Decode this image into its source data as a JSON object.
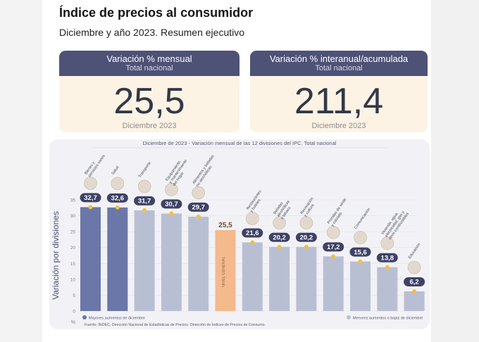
{
  "header": {
    "title": "Índice de precios al consumidor",
    "subtitle": "Diciembre y año 2023. Resumen ejecutivo"
  },
  "cards": [
    {
      "label": "Variación % mensual",
      "sublabel": "Total nacional",
      "value": "25,5",
      "date": "Diciembre 2023"
    },
    {
      "label": "Variación % interanual/acumulada",
      "sublabel": "Total nacional",
      "value": "211,4",
      "date": "Diciembre 2023"
    }
  ],
  "colors": {
    "header_bg": "#4e5276",
    "bar_high": "#6a77a8",
    "bar_low": "#b9bfd3",
    "bar_general": "#f4b98d",
    "badge": "#3e4266",
    "dot": "#f3c13a"
  },
  "chart_data": {
    "type": "bar",
    "title": "Diciembre de 2023 - Variación mensual de las 12 divisiones del IPC. Total nacional",
    "ylabel": "Variación por divisiones",
    "yunit": "%",
    "ylim": [
      0,
      35
    ],
    "yticks": [
      0,
      5,
      10,
      15,
      20,
      25,
      30,
      35
    ],
    "categories": [
      "Bienes y servicios varios",
      "Salud",
      "Transporte",
      "Equipamiento y mantenimiento del hogar",
      "Alimentos y bebidas no alcohólicas",
      "Nivel general",
      "Restaurantes y hoteles",
      "Bebidas alcohólicas y tabaco",
      "Recreación y cultura",
      "Prendas de vestir y calzado",
      "Comunicación",
      "Vivienda, agua, electricidad, gas y otros combustibles",
      "Educación"
    ],
    "values": [
      32.7,
      32.6,
      31.7,
      30.7,
      29.7,
      25.5,
      21.6,
      20.2,
      20.2,
      17.2,
      15.6,
      13.8,
      6.2
    ],
    "value_labels": [
      "32,7",
      "32,6",
      "31,7",
      "30,7",
      "29,7",
      "25,5",
      "21,6",
      "20,2",
      "20,2",
      "17,2",
      "15,6",
      "13,8",
      "6,2"
    ],
    "groups": [
      "high",
      "high",
      "low",
      "low",
      "low",
      "general",
      "low",
      "low",
      "low",
      "low",
      "low",
      "low",
      "low"
    ],
    "general_bar_label": "NIVEL GENERAL",
    "legend": [
      {
        "key": "high",
        "label": "Mayores aumentos de diciembre"
      },
      {
        "key": "low",
        "label": "Menores aumentos o bajas de diciembre"
      }
    ],
    "source": "Fuente: INDEC, Dirección Nacional de Estadísticas de Precios. Dirección de Índices de Precios de Consumo."
  }
}
